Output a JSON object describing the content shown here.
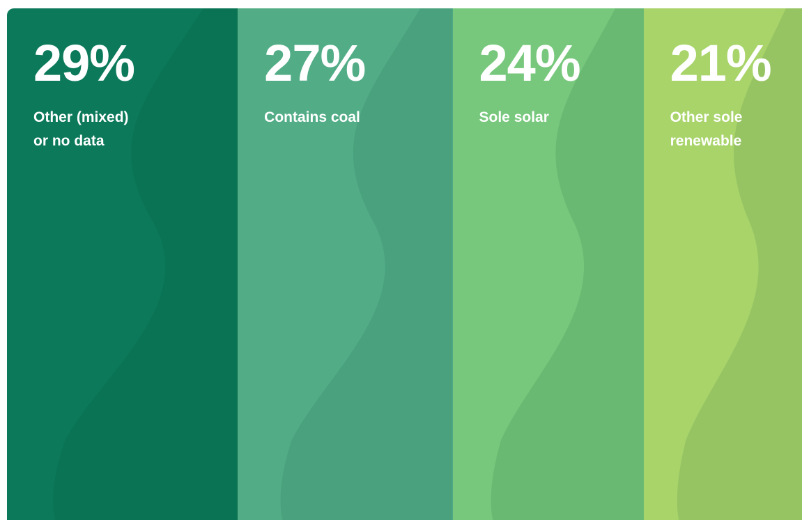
{
  "chart_data": {
    "type": "stacked_bar",
    "categories": [
      "Other (mixed) or no data",
      "Contains coal",
      "Sole solar",
      "Other sole renewable"
    ],
    "values": [
      29,
      27,
      24,
      21
    ],
    "value_labels": [
      "29%",
      "27%",
      "24%",
      "21%"
    ],
    "colors": [
      "#0c7a5a",
      "#52ad87",
      "#77c87c",
      "#a8d46a"
    ]
  }
}
